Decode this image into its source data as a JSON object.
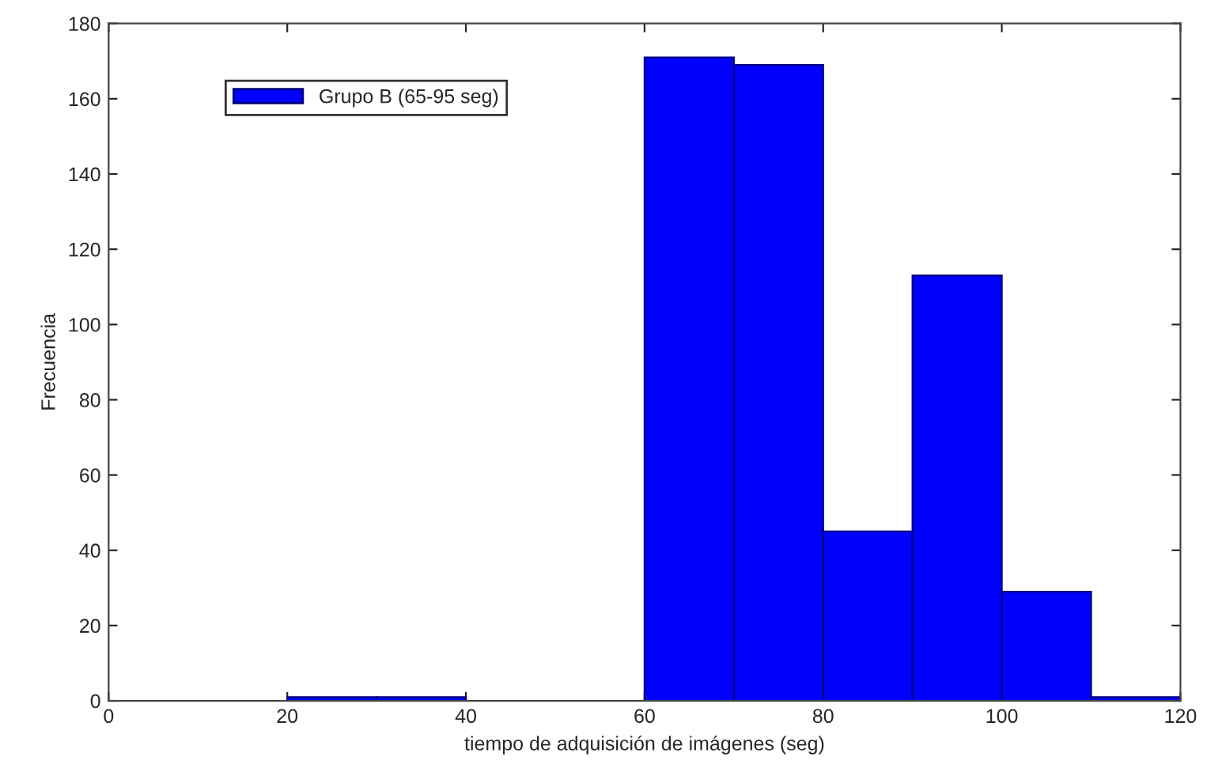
{
  "chart_data": {
    "type": "histogram",
    "xlabel": "tiempo de adquisición de imágenes (seg)",
    "ylabel": "Frecuencia",
    "bins": [
      20,
      30,
      40,
      50,
      60,
      70,
      80,
      90,
      100,
      110,
      120
    ],
    "series": [
      {
        "name": "Grupo B (65-95 seg)",
        "color": "#0000ff",
        "values": [
          1,
          1,
          0,
          0,
          171,
          169,
          45,
          113,
          29,
          1
        ]
      }
    ],
    "xlim": [
      0,
      120
    ],
    "xticks": [
      0,
      20,
      40,
      60,
      80,
      100,
      120
    ],
    "ylim": [
      0,
      180
    ],
    "yticks": [
      0,
      20,
      40,
      60,
      80,
      100,
      120,
      140,
      160,
      180
    ],
    "grid": false,
    "legend": "top left"
  }
}
